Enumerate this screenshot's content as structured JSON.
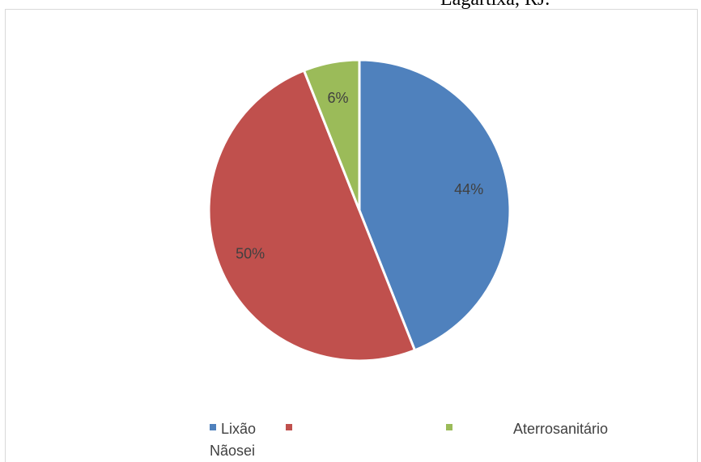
{
  "caption": "Lagartixa, RJ.",
  "chart_data": {
    "type": "pie",
    "categories": [
      "Lixão",
      "Nãosei",
      "Aterrosanitário"
    ],
    "values": [
      44,
      50,
      6
    ],
    "data_labels": [
      "44%",
      "50%",
      "6%"
    ],
    "colors": [
      "#4f81bd",
      "#c0504d",
      "#9bbb59"
    ],
    "legend_position": "bottom"
  },
  "legend": {
    "items": [
      {
        "label": "Lixão",
        "color": "#4f81bd"
      },
      {
        "label": "Nãosei",
        "color": "#c0504d"
      },
      {
        "label": "Aterrosanitário",
        "color": "#9bbb59"
      }
    ]
  }
}
